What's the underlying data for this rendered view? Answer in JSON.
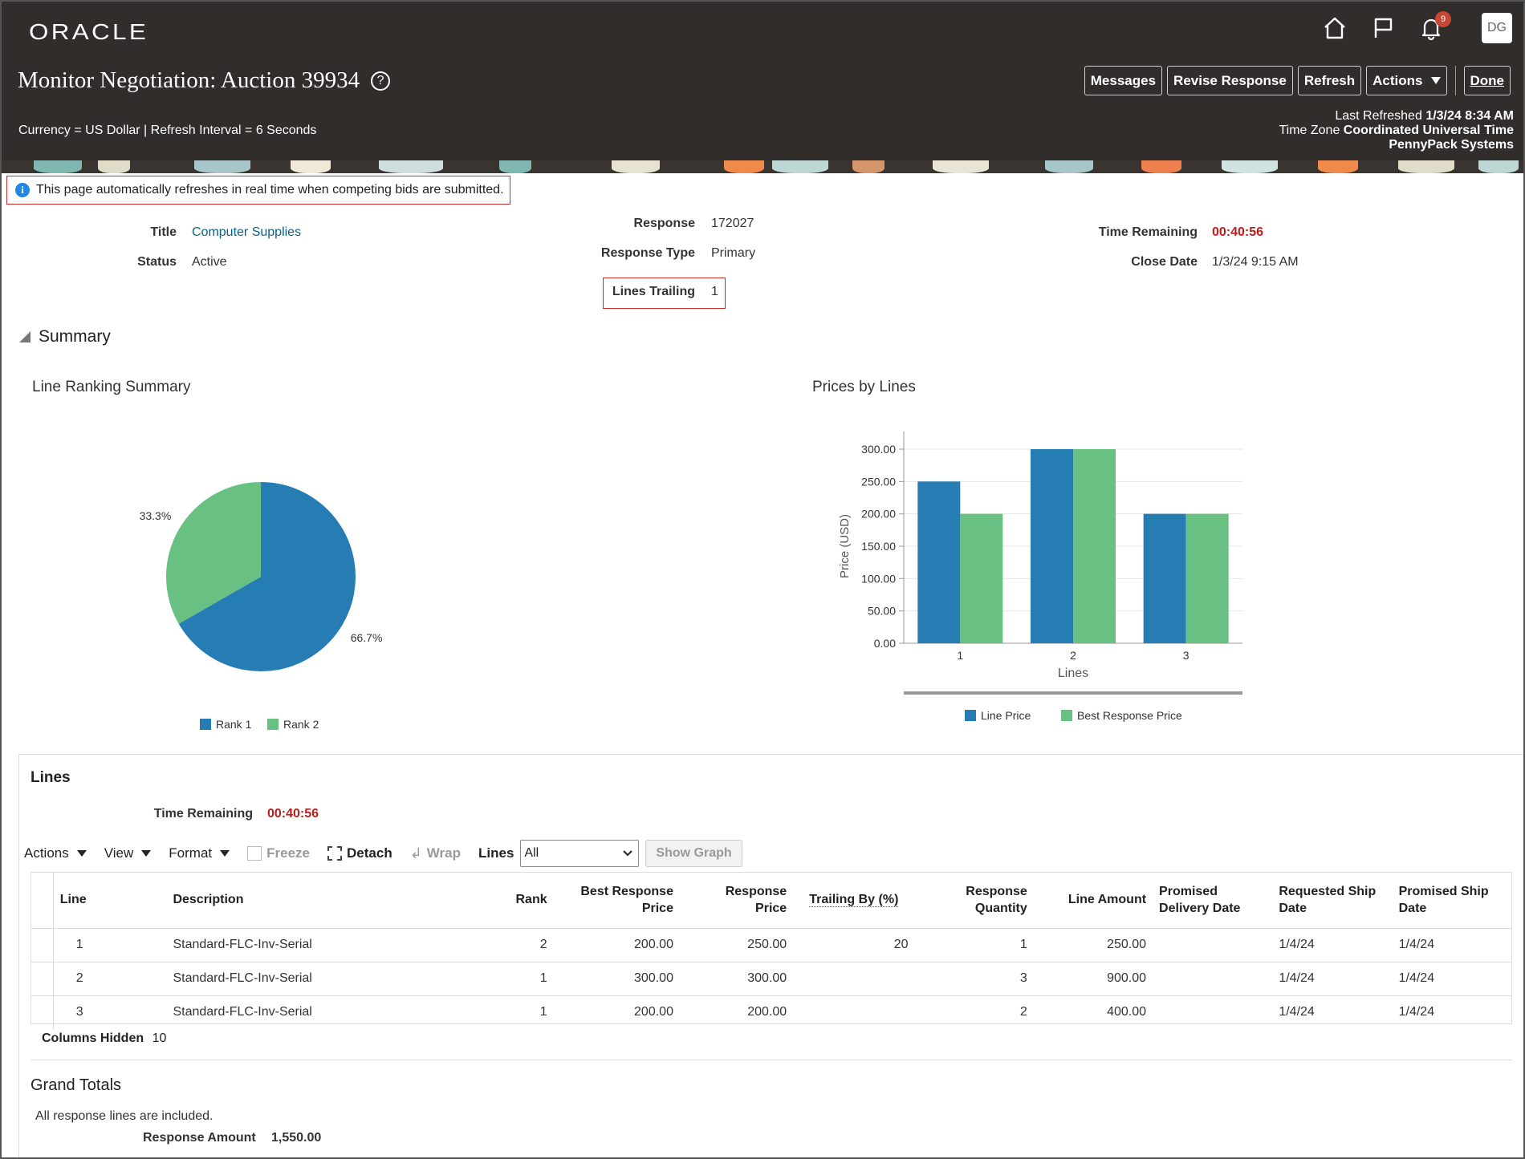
{
  "header": {
    "logo": "ORACLE",
    "notification_count": "9",
    "avatar_initials": "DG",
    "page_title": "Monitor Negotiation: Auction 39934",
    "help_glyph": "?",
    "buttons": {
      "messages": "Messages",
      "revise_response": "Revise Response",
      "refresh": "Refresh",
      "actions": "Actions",
      "done": "Done"
    },
    "currency_text": "Currency = US Dollar | Refresh Interval = 6 Seconds",
    "last_refreshed_label": "Last Refreshed",
    "last_refreshed_value": "1/3/24 8:34 AM",
    "timezone_label": "Time Zone",
    "timezone_value": "Coordinated Universal Time",
    "company": "PennyPack Systems"
  },
  "info_message": "This page automatically refreshes in real time when competing bids are submitted.",
  "details": {
    "title_label": "Title",
    "title_value": "Computer Supplies",
    "status_label": "Status",
    "status_value": "Active",
    "response_label": "Response",
    "response_value": "172027",
    "response_type_label": "Response Type",
    "response_type_value": "Primary",
    "lines_trailing_label": "Lines Trailing",
    "lines_trailing_value": "1",
    "time_remaining_label": "Time Remaining",
    "time_remaining_value": "00:40:56",
    "close_date_label": "Close Date",
    "close_date_value": "1/3/24 9:15 AM"
  },
  "summary": {
    "title": "Summary",
    "pie_title": "Line Ranking Summary",
    "bar_title": "Prices by Lines"
  },
  "chart_data": [
    {
      "type": "pie",
      "title": "Line Ranking Summary",
      "categories": [
        "Rank 1",
        "Rank 2"
      ],
      "values": [
        66.7,
        33.3
      ],
      "labels": [
        "66.7%",
        "33.3%"
      ],
      "colors": [
        "#267db3",
        "#68c182"
      ],
      "legend": "bottom"
    },
    {
      "type": "bar",
      "title": "Prices by Lines",
      "categories": [
        "1",
        "2",
        "3"
      ],
      "series": [
        {
          "name": "Line Price",
          "values": [
            250,
            300,
            200
          ],
          "color": "#267db3"
        },
        {
          "name": "Best Response Price",
          "values": [
            200,
            300,
            200
          ],
          "color": "#68c182"
        }
      ],
      "xlabel": "Lines",
      "ylabel": "Price (USD)",
      "ylim": [
        0,
        300
      ],
      "yticks": [
        "0.00",
        "50.00",
        "100.00",
        "150.00",
        "200.00",
        "250.00",
        "300.00"
      ],
      "grid": true,
      "legend": "bottom"
    }
  ],
  "lines": {
    "title": "Lines",
    "time_remaining_label": "Time Remaining",
    "time_remaining_value": "00:40:56",
    "toolbar": {
      "actions": "Actions",
      "view": "View",
      "format": "Format",
      "freeze": "Freeze",
      "detach": "Detach",
      "wrap": "Wrap",
      "lines_label": "Lines",
      "lines_select": "All",
      "show_graph": "Show Graph"
    },
    "columns": {
      "line": "Line",
      "description": "Description",
      "rank": "Rank",
      "best_response_price_1": "Best Response",
      "best_response_price_2": "Price",
      "response_price_1": "Response",
      "response_price_2": "Price",
      "trailing_by": "Trailing By (%)",
      "response_quantity_1": "Response",
      "response_quantity_2": "Quantity",
      "line_amount": "Line Amount",
      "promised_delivery_1": "Promised",
      "promised_delivery_2": "Delivery Date",
      "requested_ship_1": "Requested Ship",
      "requested_ship_2": "Date",
      "promised_ship_1": "Promised Ship",
      "promised_ship_2": "Date"
    },
    "rows": [
      {
        "line": "1",
        "description": "Standard-FLC-Inv-Serial",
        "rank": "2",
        "best_price": "200.00",
        "response_price": "250.00",
        "trailing_by": "20",
        "quantity": "1",
        "line_amount": "250.00",
        "promised_delivery": "",
        "requested_ship": "1/4/24",
        "promised_ship": "1/4/24"
      },
      {
        "line": "2",
        "description": "Standard-FLC-Inv-Serial",
        "rank": "1",
        "best_price": "300.00",
        "response_price": "300.00",
        "trailing_by": "",
        "quantity": "3",
        "line_amount": "900.00",
        "promised_delivery": "",
        "requested_ship": "1/4/24",
        "promised_ship": "1/4/24"
      },
      {
        "line": "3",
        "description": "Standard-FLC-Inv-Serial",
        "rank": "1",
        "best_price": "200.00",
        "response_price": "200.00",
        "trailing_by": "",
        "quantity": "2",
        "line_amount": "400.00",
        "promised_delivery": "",
        "requested_ship": "1/4/24",
        "promised_ship": "1/4/24"
      }
    ],
    "columns_hidden_label": "Columns Hidden",
    "columns_hidden_value": "10"
  },
  "grand_totals": {
    "title": "Grand Totals",
    "note": "All response lines are included.",
    "response_amount_label": "Response Amount",
    "response_amount_value": "1,550.00"
  }
}
